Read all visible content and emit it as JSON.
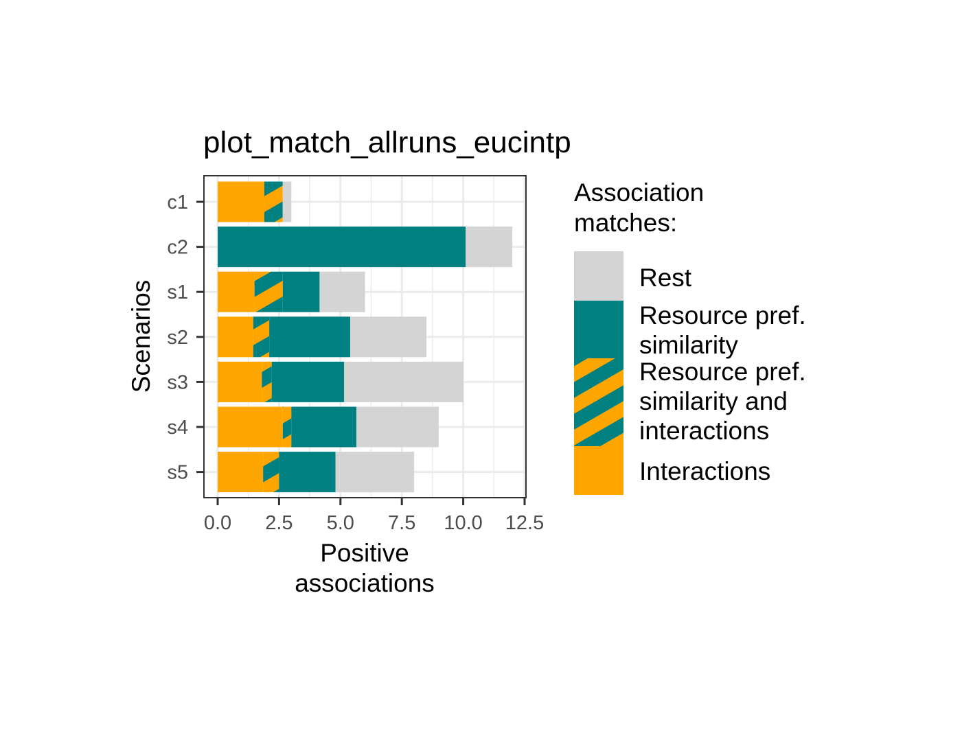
{
  "chart_data": {
    "type": "bar",
    "orientation": "horizontal",
    "stacked": true,
    "title": "plot_match_allruns_eucintp",
    "xlabel": "Positive\nassociations",
    "ylabel": "Scenarios",
    "xlim": [
      0,
      12.5
    ],
    "x_ticks": [
      "0.0",
      "2.5",
      "5.0",
      "7.5",
      "10.0",
      "12.5"
    ],
    "x_tick_values": [
      0,
      2.5,
      5,
      7.5,
      10,
      12.5
    ],
    "categories": [
      "c1",
      "c2",
      "s1",
      "s2",
      "s3",
      "s4",
      "s5"
    ],
    "grid": true,
    "legend_position": "right",
    "legend_title": "Association\nmatches:",
    "series": [
      {
        "name": "Interactions",
        "key": "interactions",
        "color": "#ffa500",
        "pattern": "solid",
        "values": [
          1.9,
          0.0,
          1.5,
          1.45,
          1.8,
          2.65,
          1.85
        ]
      },
      {
        "name": "Resource pref.\nsimilarity and\ninteractions",
        "key": "both",
        "color": "#008080",
        "pattern": "stripe",
        "values": [
          0.75,
          0.0,
          1.15,
          0.65,
          0.4,
          0.35,
          0.65
        ]
      },
      {
        "name": "Resource pref.\nsimilarity",
        "key": "resource",
        "color": "#008080",
        "pattern": "solid",
        "values": [
          0.0,
          10.1,
          1.5,
          3.3,
          2.95,
          2.65,
          2.3
        ]
      },
      {
        "name": "Rest",
        "key": "rest",
        "color": "#d3d4d3",
        "pattern": "solid",
        "values": [
          0.35,
          1.9,
          1.85,
          3.1,
          4.85,
          3.35,
          3.2
        ]
      }
    ],
    "legend_order": [
      "rest",
      "resource",
      "both",
      "interactions"
    ]
  }
}
